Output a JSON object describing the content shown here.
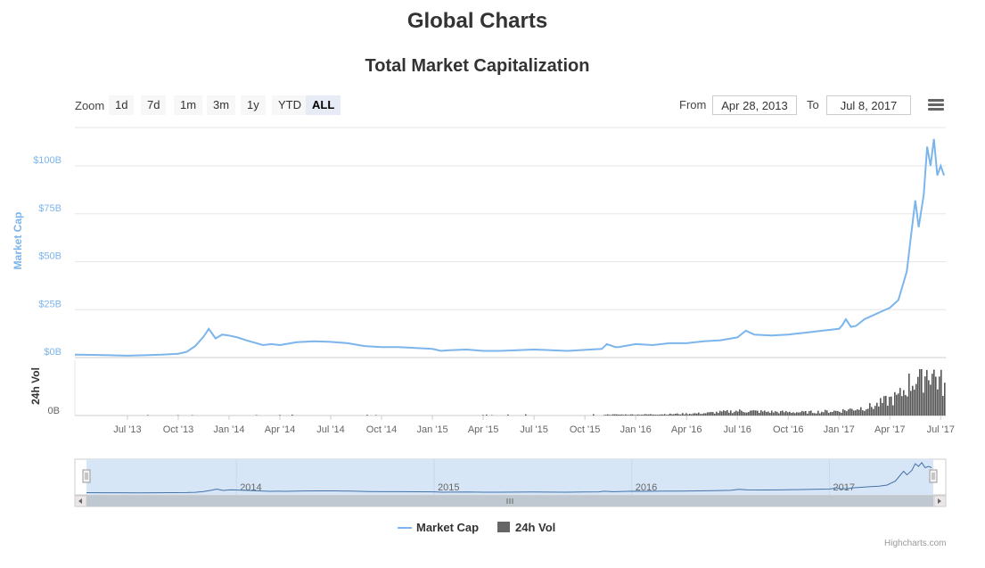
{
  "page": {
    "title": "Global Charts"
  },
  "chart_data": {
    "type": "line",
    "title": "Total Market Capitalization",
    "ylabel": "Market Cap",
    "volume_label": "24h Vol",
    "ylim": [
      0,
      120
    ],
    "y_unit": "B",
    "y_ticks": [
      "$0B",
      "$25B",
      "$50B",
      "$75B",
      "$100B"
    ],
    "y_tick_values": [
      0,
      25,
      50,
      75,
      100
    ],
    "volume_tick": "0B",
    "x_ticks": [
      "Jul '13",
      "Oct '13",
      "Jan '14",
      "Apr '14",
      "Jul '14",
      "Oct '14",
      "Jan '15",
      "Apr '15",
      "Jul '15",
      "Oct '15",
      "Jan '16",
      "Apr '16",
      "Jul '16",
      "Oct '16",
      "Jan '17",
      "Apr '17",
      "Jul '17"
    ],
    "x_tick_months": [
      2,
      5,
      8,
      11,
      14,
      17,
      20,
      23,
      26,
      29,
      32,
      35,
      38,
      41,
      44,
      47,
      50
    ],
    "x_range_months": [
      -1.1,
      50.3
    ],
    "series": [
      {
        "name": "Market Cap",
        "color": "#7cb5ec",
        "month_offsets": [
          -1.1,
          0,
          1,
          2,
          3,
          4,
          5,
          5.5,
          6,
          6.5,
          6.8,
          7.2,
          7.6,
          8,
          8.5,
          9,
          10,
          10.5,
          11,
          12,
          13,
          14,
          15,
          16,
          17,
          18,
          19,
          20,
          20.5,
          21,
          22,
          23,
          24,
          25,
          26,
          27,
          28,
          29,
          30,
          30.3,
          30.8,
          31,
          32,
          33,
          34,
          35,
          36,
          37,
          38,
          38.5,
          39,
          40,
          41,
          42,
          43,
          44,
          44.2,
          44.4,
          44.7,
          45,
          45.5,
          46,
          46.5,
          47,
          47.5,
          48,
          48.2,
          48.5,
          48.7,
          49,
          49.2,
          49.4,
          49.6,
          49.8,
          50,
          50.2,
          50.3
        ],
        "values": [
          1.5,
          1.4,
          1.2,
          1,
          1.2,
          1.5,
          2,
          3,
          6,
          11,
          15,
          10,
          12,
          11.5,
          10.5,
          9,
          6.5,
          7,
          6.5,
          8,
          8.5,
          8.2,
          7.5,
          6,
          5.5,
          5.5,
          5,
          4.5,
          3.5,
          3.8,
          4.2,
          3.5,
          3.5,
          3.8,
          4.2,
          3.8,
          3.5,
          4,
          4.5,
          7,
          5.5,
          5.5,
          7,
          6.5,
          7.5,
          7.5,
          8.5,
          9,
          10.5,
          14,
          12,
          11.5,
          12,
          13,
          14,
          15,
          17,
          20,
          16,
          16.5,
          20,
          22,
          24,
          26,
          30,
          45,
          60,
          82,
          68,
          85,
          110,
          100,
          114,
          95,
          100,
          95
        ]
      },
      {
        "name": "24h Vol",
        "color": "#555555",
        "month_offsets": [
          -1.1,
          30,
          32,
          34,
          36,
          38,
          40,
          42,
          44,
          45,
          46,
          47,
          47.5,
          48,
          48.5,
          49,
          49.3,
          49.6,
          50,
          50.3
        ],
        "values": [
          0.01,
          0.02,
          0.02,
          0.03,
          0.05,
          0.1,
          0.08,
          0.07,
          0.1,
          0.15,
          0.2,
          0.35,
          0.4,
          0.65,
          0.8,
          0.9,
          1.0,
          0.85,
          0.7,
          0.6
        ]
      }
    ],
    "navigator": {
      "labels": [
        "2014",
        "2015",
        "2016",
        "2017"
      ],
      "label_months": [
        8,
        20,
        32,
        44
      ]
    },
    "legend": [
      "Market Cap",
      "24h Vol"
    ]
  },
  "range_selector": {
    "zoom_label": "Zoom",
    "buttons": [
      "1d",
      "7d",
      "1m",
      "3m",
      "1y",
      "YTD",
      "ALL"
    ],
    "active": "ALL",
    "from_label": "From",
    "from_value": "Apr 28, 2013",
    "to_label": "To",
    "to_value": "Jul 8, 2017"
  },
  "credits": "Highcharts.com",
  "colors": {
    "accent": "#7cb5ec",
    "volume": "#555555",
    "grid": "#e6e6e6",
    "nav_mask": "#d6e6f7"
  }
}
